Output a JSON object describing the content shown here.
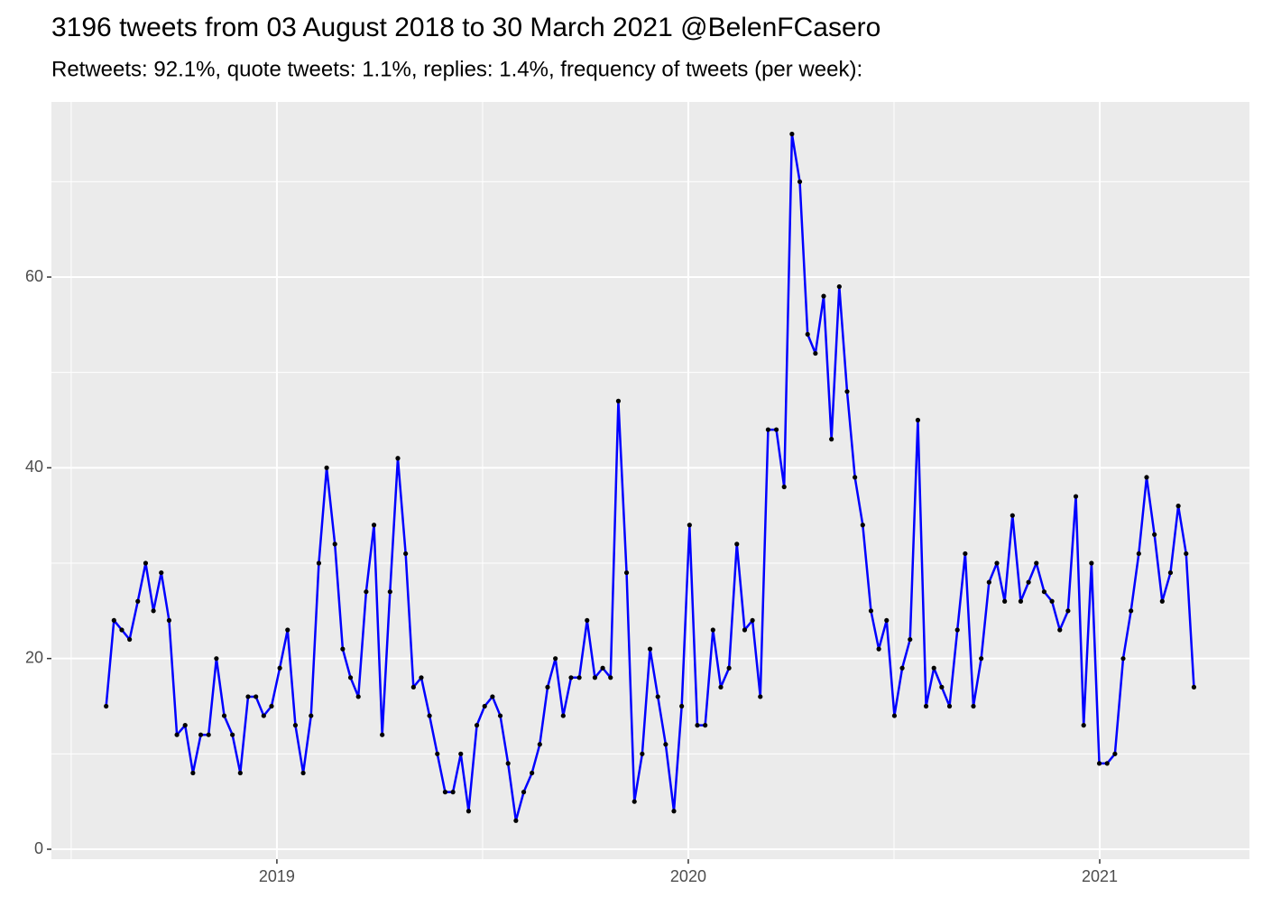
{
  "chart_data": {
    "type": "line",
    "title": "3196 tweets from 03 August 2018 to 30 March 2021 @BelenFCasero",
    "subtitle": "Retweets: 92.1%, quote tweets: 1.1%, replies: 1.4%, frequency of tweets (per week):",
    "x": [
      2018.585,
      2018.604,
      2018.623,
      2018.642,
      2018.662,
      2018.681,
      2018.7,
      2018.719,
      2018.738,
      2018.757,
      2018.777,
      2018.796,
      2018.815,
      2018.834,
      2018.853,
      2018.872,
      2018.892,
      2018.911,
      2018.93,
      2018.949,
      2018.968,
      2018.987,
      2019.007,
      2019.026,
      2019.045,
      2019.064,
      2019.083,
      2019.102,
      2019.121,
      2019.141,
      2019.16,
      2019.179,
      2019.198,
      2019.217,
      2019.236,
      2019.256,
      2019.275,
      2019.294,
      2019.313,
      2019.332,
      2019.351,
      2019.371,
      2019.39,
      2019.409,
      2019.428,
      2019.447,
      2019.466,
      2019.486,
      2019.505,
      2019.524,
      2019.543,
      2019.562,
      2019.581,
      2019.6,
      2019.62,
      2019.639,
      2019.658,
      2019.677,
      2019.696,
      2019.715,
      2019.735,
      2019.754,
      2019.773,
      2019.792,
      2019.811,
      2019.83,
      2019.85,
      2019.869,
      2019.888,
      2019.907,
      2019.926,
      2019.945,
      2019.965,
      2019.984,
      2020.003,
      2020.022,
      2020.041,
      2020.06,
      2020.079,
      2020.099,
      2020.118,
      2020.137,
      2020.156,
      2020.175,
      2020.194,
      2020.214,
      2020.233,
      2020.252,
      2020.271,
      2020.29,
      2020.309,
      2020.329,
      2020.348,
      2020.367,
      2020.386,
      2020.405,
      2020.424,
      2020.444,
      2020.463,
      2020.482,
      2020.501,
      2020.52,
      2020.539,
      2020.558,
      2020.578,
      2020.597,
      2020.616,
      2020.635,
      2020.654,
      2020.673,
      2020.693,
      2020.712,
      2020.731,
      2020.75,
      2020.769,
      2020.788,
      2020.808,
      2020.827,
      2020.846,
      2020.865,
      2020.884,
      2020.903,
      2020.923,
      2020.942,
      2020.961,
      2020.98,
      2020.999,
      2021.018,
      2021.037,
      2021.057,
      2021.076,
      2021.095,
      2021.114,
      2021.133,
      2021.152,
      2021.172,
      2021.191,
      2021.21,
      2021.229
    ],
    "series": [
      {
        "color": "#0000ff",
        "point_color": "#000000",
        "values": [
          15,
          24,
          23,
          22,
          26,
          30,
          25,
          29,
          24,
          12,
          13,
          8,
          12,
          12,
          20,
          14,
          12,
          8,
          16,
          16,
          14,
          15,
          19,
          23,
          13,
          8,
          14,
          30,
          40,
          32,
          21,
          18,
          16,
          27,
          34,
          12,
          27,
          41,
          31,
          17,
          18,
          14,
          10,
          6,
          6,
          10,
          4,
          13,
          15,
          16,
          14,
          9,
          3,
          6,
          8,
          11,
          17,
          20,
          14,
          18,
          18,
          24,
          18,
          19,
          18,
          47,
          29,
          5,
          10,
          21,
          16,
          11,
          4,
          15,
          34,
          13,
          13,
          23,
          17,
          19,
          32,
          23,
          24,
          16,
          44,
          44,
          38,
          75,
          70,
          54,
          52,
          58,
          43,
          59,
          48,
          39,
          34,
          25,
          21,
          24,
          14,
          19,
          22,
          45,
          15,
          19,
          17,
          15,
          23,
          31,
          15,
          20,
          28,
          30,
          26,
          35,
          26,
          28,
          30,
          27,
          26,
          23,
          25,
          37,
          13,
          30,
          9,
          9,
          10,
          20,
          25,
          31,
          39,
          33,
          26,
          29,
          36,
          31,
          17
        ]
      }
    ],
    "xlim": [
      2018.452,
      2021.364
    ],
    "xticks": [
      2019,
      2020,
      2021
    ],
    "ylim": [
      -1.04,
      78.36
    ],
    "yticks": [
      0,
      20,
      40,
      60
    ],
    "grid": true
  }
}
